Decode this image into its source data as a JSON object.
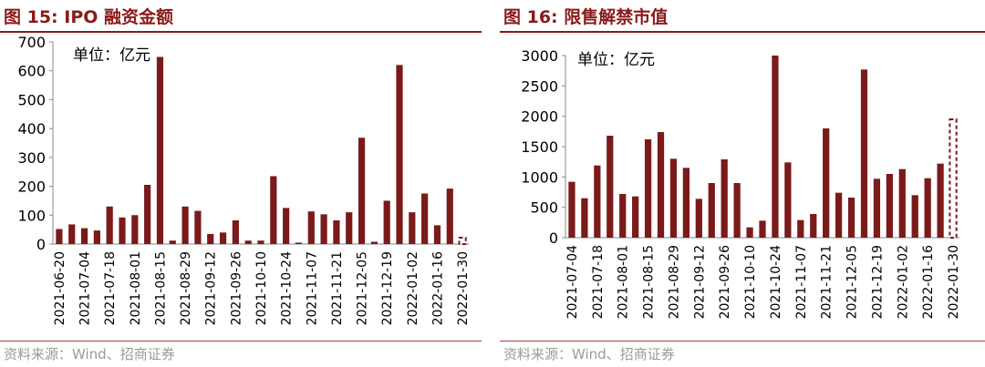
{
  "charts": [
    {
      "id": "ipo",
      "figure_label": "图 15:",
      "title": "IPO 融资金额",
      "unit_label": "单位：亿元",
      "source": "资料来源：Wind、招商证券",
      "accent_color": "#7b1a1a",
      "chart_data": {
        "type": "bar",
        "categories": [
          "2021-06-20",
          "",
          "2021-07-04",
          "",
          "2021-07-18",
          "",
          "2021-08-01",
          "",
          "2021-08-15",
          "",
          "2021-08-29",
          "",
          "2021-09-12",
          "",
          "2021-09-26",
          "",
          "2021-10-10",
          "",
          "2021-10-24",
          "",
          "2021-11-07",
          "",
          "2021-11-21",
          "",
          "2021-12-05",
          "",
          "2021-12-19",
          "",
          "2022-01-02",
          "",
          "2022-01-16",
          "",
          "2022-01-30"
        ],
        "values": [
          52,
          68,
          55,
          47,
          130,
          92,
          100,
          205,
          648,
          12,
          130,
          115,
          35,
          40,
          82,
          12,
          12,
          235,
          125,
          5,
          113,
          103,
          82,
          110,
          368,
          8,
          150,
          620,
          110,
          175,
          65,
          192,
          22
        ],
        "estimated_last": true,
        "yticks": [
          0,
          100,
          200,
          300,
          400,
          500,
          600,
          700
        ],
        "ylim": [
          0,
          700
        ],
        "grid": false
      }
    },
    {
      "id": "unlock",
      "figure_label": "图 16:",
      "title": "限售解禁市值",
      "unit_label": "单位：亿元",
      "source": "资料来源：Wind、招商证券",
      "accent_color": "#7b1a1a",
      "chart_data": {
        "type": "bar",
        "categories": [
          "2021-07-04",
          "",
          "2021-07-18",
          "",
          "2021-08-01",
          "",
          "2021-08-15",
          "",
          "2021-08-29",
          "",
          "2021-09-12",
          "",
          "2021-09-26",
          "",
          "2021-10-10",
          "",
          "2021-10-24",
          "",
          "2021-11-07",
          "",
          "2021-11-21",
          "",
          "2021-12-05",
          "",
          "2021-12-19",
          "",
          "2022-01-02",
          "",
          "2022-01-16",
          "",
          "2022-01-30"
        ],
        "values": [
          920,
          650,
          1190,
          1680,
          720,
          680,
          1620,
          1740,
          1300,
          1150,
          640,
          900,
          1290,
          900,
          170,
          280,
          3000,
          1240,
          290,
          390,
          1800,
          740,
          660,
          2770,
          970,
          1050,
          1130,
          700,
          980,
          1220,
          1950
        ],
        "estimated_last": true,
        "yticks": [
          0,
          500,
          1000,
          1500,
          2000,
          2500,
          3000
        ],
        "ylim": [
          0,
          3000
        ],
        "grid": false
      }
    }
  ]
}
